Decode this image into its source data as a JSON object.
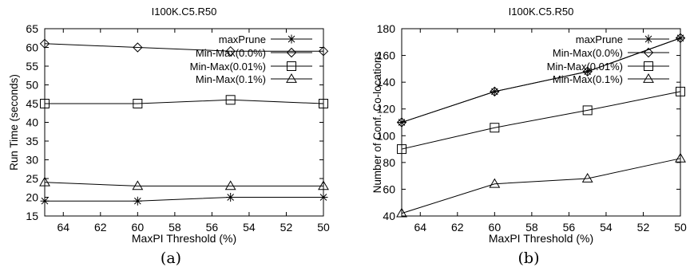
{
  "chart_data": [
    {
      "type": "line",
      "title": "I100K.C5.R50",
      "xlabel": "MaxPI Threshold (%)",
      "ylabel": "Run Time (seconds)",
      "caption": "(a)",
      "xlim": [
        65,
        50
      ],
      "ylim": [
        15,
        65
      ],
      "xticks": [
        64,
        62,
        60,
        58,
        56,
        54,
        52,
        50
      ],
      "yticks": [
        15,
        20,
        25,
        30,
        35,
        40,
        45,
        50,
        55,
        60,
        65
      ],
      "legend_position": "top-right",
      "grid": false,
      "x": [
        65,
        60,
        55,
        50
      ],
      "series": [
        {
          "name": "maxPrune",
          "marker": "star",
          "values": [
            19,
            19,
            20,
            20
          ]
        },
        {
          "name": "Min-Max(0.0%)",
          "marker": "diamond",
          "values": [
            61,
            60,
            59,
            59
          ]
        },
        {
          "name": "Min-Max(0.01%)",
          "marker": "square",
          "values": [
            45,
            45,
            46,
            45
          ]
        },
        {
          "name": "Min-Max(0.1%)",
          "marker": "triangle",
          "values": [
            24,
            23,
            23,
            23
          ]
        }
      ]
    },
    {
      "type": "line",
      "title": "I100K.C5.R50",
      "xlabel": "MaxPI Threshold (%)",
      "ylabel": "Number of Conf. Co-locations",
      "caption": "(b)",
      "xlim": [
        65,
        50
      ],
      "ylim": [
        40,
        180
      ],
      "xticks": [
        64,
        62,
        60,
        58,
        56,
        54,
        52,
        50
      ],
      "yticks": [
        40,
        60,
        80,
        100,
        120,
        140,
        160,
        180
      ],
      "legend_position": "top-right",
      "grid": false,
      "x": [
        65,
        60,
        55,
        50
      ],
      "series": [
        {
          "name": "maxPrune",
          "marker": "star",
          "values": [
            110,
            133,
            148,
            173
          ]
        },
        {
          "name": "Min-Max(0.0%)",
          "marker": "diamond",
          "values": [
            110,
            133,
            148,
            173
          ]
        },
        {
          "name": "Min-Max(0.01%)",
          "marker": "square",
          "values": [
            90,
            106,
            119,
            133
          ]
        },
        {
          "name": "Min-Max(0.1%)",
          "marker": "triangle",
          "values": [
            42,
            64,
            68,
            83
          ]
        }
      ]
    }
  ]
}
